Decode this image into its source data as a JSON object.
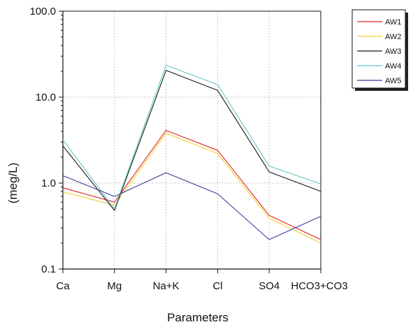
{
  "chart_data": {
    "type": "line",
    "title": "",
    "xlabel": "Parameters",
    "ylabel": "(meg/L)",
    "yscale": "log",
    "ylim": [
      0.1,
      100
    ],
    "yticks": [
      "0.1",
      "1.0",
      "10.0",
      "100.0"
    ],
    "grid": true,
    "legend_position": "top-right",
    "categories": [
      "Ca",
      "Mg",
      "Na+K",
      "Cl",
      "SO4",
      "HCO3+CO3"
    ],
    "series": [
      {
        "name": "AW1",
        "color": "#e02020",
        "values": [
          0.88,
          0.6,
          4.1,
          2.4,
          0.42,
          0.22
        ]
      },
      {
        "name": "AW2",
        "color": "#f2d02c",
        "values": [
          0.79,
          0.55,
          3.8,
          2.2,
          0.39,
          0.2
        ]
      },
      {
        "name": "AW3",
        "color": "#1a1a1a",
        "values": [
          2.7,
          0.48,
          20.5,
          12.0,
          1.35,
          0.8
        ]
      },
      {
        "name": "AW4",
        "color": "#5fc8c8",
        "values": [
          3.2,
          0.5,
          23.5,
          14.0,
          1.58,
          0.98
        ]
      },
      {
        "name": "AW5",
        "color": "#3a3a9e",
        "values": [
          1.22,
          0.7,
          1.32,
          0.75,
          0.22,
          0.41
        ]
      }
    ]
  }
}
